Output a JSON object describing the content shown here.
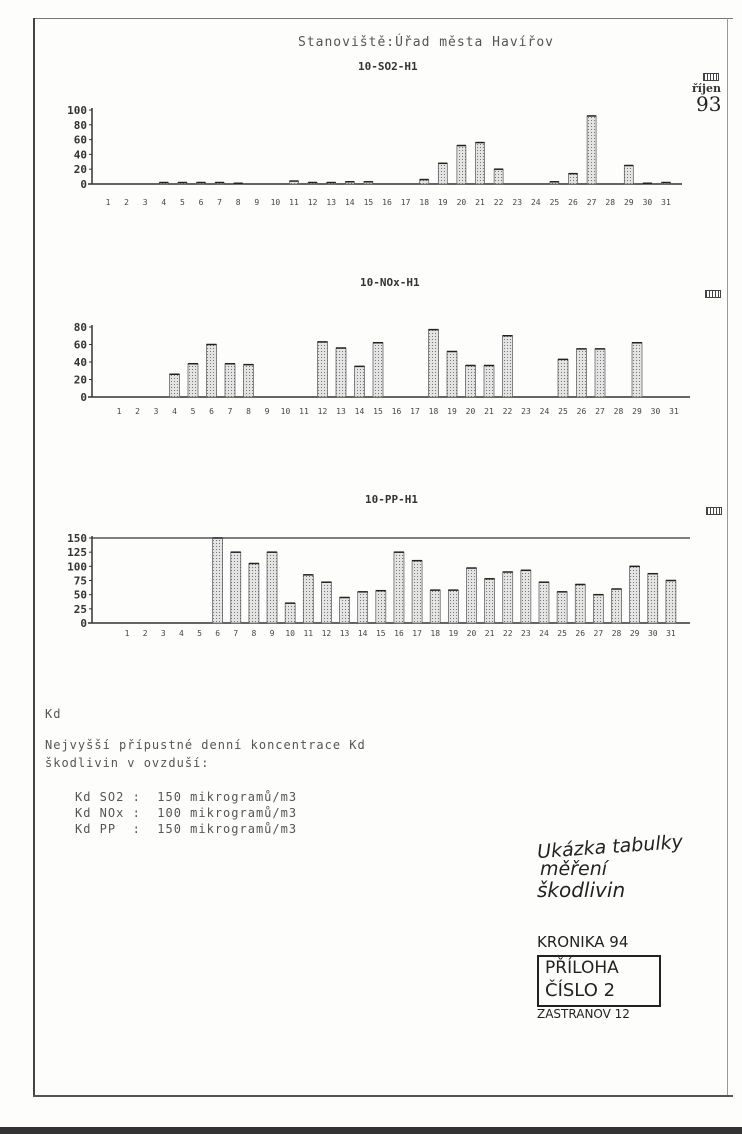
{
  "header": {
    "station": "Stanoviště:Úřad města Havířov",
    "month_stamp": "říjen",
    "year_stamp": "93"
  },
  "chart_data": [
    {
      "type": "bar",
      "title": "10-SO2-H1",
      "categories": [
        "1",
        "2",
        "3",
        "4",
        "5",
        "6",
        "7",
        "8",
        "9",
        "10",
        "11",
        "12",
        "13",
        "14",
        "15",
        "16",
        "17",
        "18",
        "19",
        "20",
        "21",
        "22",
        "23",
        "24",
        "25",
        "26",
        "27",
        "28",
        "29",
        "30",
        "31"
      ],
      "values": [
        0,
        0,
        0,
        2,
        2,
        2,
        2,
        1,
        0,
        0,
        4,
        2,
        2,
        3,
        3,
        0,
        0,
        6,
        28,
        52,
        56,
        20,
        0,
        0,
        3,
        14,
        92,
        0,
        25,
        1,
        2
      ],
      "yticks": [
        "0",
        "20",
        "40",
        "60",
        "80",
        "100"
      ],
      "ylim": [
        0,
        100
      ],
      "grid": false,
      "color": "#bbbbbb"
    },
    {
      "type": "bar",
      "title": "10-NOx-H1",
      "categories": [
        "1",
        "2",
        "3",
        "4",
        "5",
        "6",
        "7",
        "8",
        "9",
        "10",
        "11",
        "12",
        "13",
        "14",
        "15",
        "16",
        "17",
        "18",
        "19",
        "20",
        "21",
        "22",
        "23",
        "24",
        "25",
        "26",
        "27",
        "28",
        "29",
        "30",
        "31"
      ],
      "values": [
        0,
        0,
        0,
        26,
        38,
        60,
        38,
        37,
        0,
        0,
        0,
        63,
        56,
        35,
        62,
        0,
        0,
        77,
        52,
        36,
        36,
        70,
        0,
        0,
        43,
        55,
        55,
        0,
        62,
        0,
        0
      ],
      "yticks": [
        "0",
        "20",
        "40",
        "60",
        "80"
      ],
      "ylim": [
        0,
        80
      ],
      "grid": false,
      "color": "#bbbbbb"
    },
    {
      "type": "bar",
      "title": "10-PP-H1",
      "categories": [
        "1",
        "2",
        "3",
        "4",
        "5",
        "6",
        "7",
        "8",
        "9",
        "10",
        "11",
        "12",
        "13",
        "14",
        "15",
        "16",
        "17",
        "18",
        "19",
        "20",
        "21",
        "22",
        "23",
        "24",
        "25",
        "26",
        "27",
        "28",
        "29",
        "30",
        "31"
      ],
      "values": [
        0,
        0,
        0,
        0,
        0,
        150,
        125,
        105,
        125,
        35,
        85,
        72,
        45,
        55,
        57,
        125,
        110,
        58,
        58,
        97,
        78,
        90,
        93,
        72,
        55,
        68,
        50,
        60,
        100,
        87,
        75
      ],
      "yticks": [
        "0",
        "25",
        "50",
        "75",
        "100",
        "125",
        "150"
      ],
      "ylim": [
        0,
        150
      ],
      "limit_line": 150,
      "grid": false,
      "color": "#bbbbbb"
    }
  ],
  "notes": {
    "kd": "Kd",
    "line1": "Nejvyšší přípustné denní koncentrace Kd",
    "line2": "škodlivin v ovzduší:",
    "limits": [
      "Kd SO2 :  150 mikrogramů/m3",
      "Kd NOx :  100 mikrogramů/m3",
      "Kd PP  :  150 mikrogramů/m3"
    ]
  },
  "handwritten": {
    "caption1": "Ukázka tabulky",
    "caption2": "měření",
    "caption3": "škodlivin",
    "kronika": "KRONIKA 94",
    "priloha1": "PŘÍLOHA",
    "priloha2": "ČÍSLO 2",
    "signature": "ZASTRANOV 12"
  }
}
